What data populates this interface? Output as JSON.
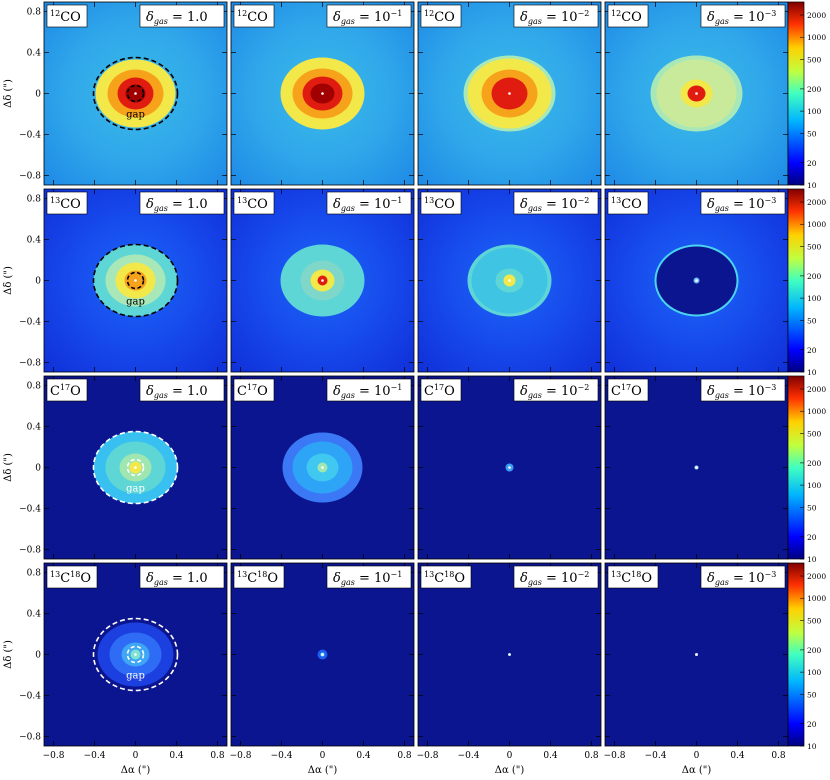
{
  "figure": {
    "rows": [
      {
        "species": "12CO",
        "iso_sup": "12",
        "iso_base": "CO",
        "colorbar_ticks": [
          "10",
          "20",
          "50",
          "100",
          "200",
          "500",
          "1000",
          "2000"
        ]
      },
      {
        "species": "13CO",
        "iso_sup": "13",
        "iso_base": "CO",
        "colorbar_ticks": [
          "10",
          "20",
          "50",
          "100",
          "200",
          "500",
          "1000",
          "2000"
        ]
      },
      {
        "species": "C17O",
        "iso_pre": "C",
        "iso_sup": "17",
        "iso_base": "O",
        "colorbar_ticks": [
          "10",
          "20",
          "50",
          "100",
          "200",
          "500",
          "1000",
          "2000"
        ]
      },
      {
        "species": "13C18O",
        "iso_sup": "13",
        "iso_mid": "C",
        "iso_sup2": "18",
        "iso_base": "O",
        "colorbar_ticks": [
          "10",
          "20",
          "50",
          "100",
          "200",
          "500",
          "1000",
          "2000"
        ]
      }
    ],
    "columns": [
      {
        "delta_label": "δ",
        "delta_sub": "gas",
        "delta_value": "= 1.0"
      },
      {
        "delta_label": "δ",
        "delta_sub": "gas",
        "delta_value": "= 10",
        "delta_exp": "−1"
      },
      {
        "delta_label": "δ",
        "delta_sub": "gas",
        "delta_value": "= 10",
        "delta_exp": "−2"
      },
      {
        "delta_label": "δ",
        "delta_sub": "gas",
        "delta_value": "= 10",
        "delta_exp": "−3"
      }
    ],
    "gap_label": "gap",
    "x_axis": {
      "label": "Δα (\")",
      "ticks": [
        "−0.8",
        "−0.4",
        "0",
        "0.4",
        "0.8"
      ]
    },
    "y_axis": {
      "label": "Δδ (\")",
      "ticks": [
        "0.8",
        "0.4",
        "0",
        "−0.4",
        "−0.8"
      ]
    },
    "colormap": "jet",
    "colorbar_scale": "log"
  }
}
